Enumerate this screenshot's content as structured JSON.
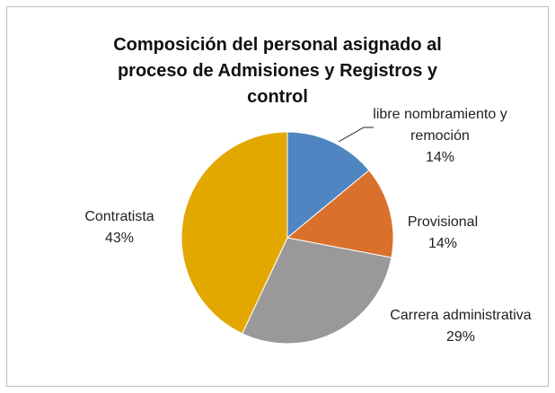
{
  "chart_data": {
    "type": "pie",
    "title": "Composición del personal asignado al proceso de Admisiones y Registros y control",
    "categories": [
      "libre nombramiento y remoción",
      "Provisional",
      "Carrera administrativa",
      "Contratista"
    ],
    "values": [
      14,
      14,
      29,
      43
    ],
    "value_labels": [
      "14%",
      "14%",
      "29%",
      "43%"
    ],
    "colors": [
      "#4f86c2",
      "#d9712c",
      "#999999",
      "#e2a800"
    ]
  }
}
